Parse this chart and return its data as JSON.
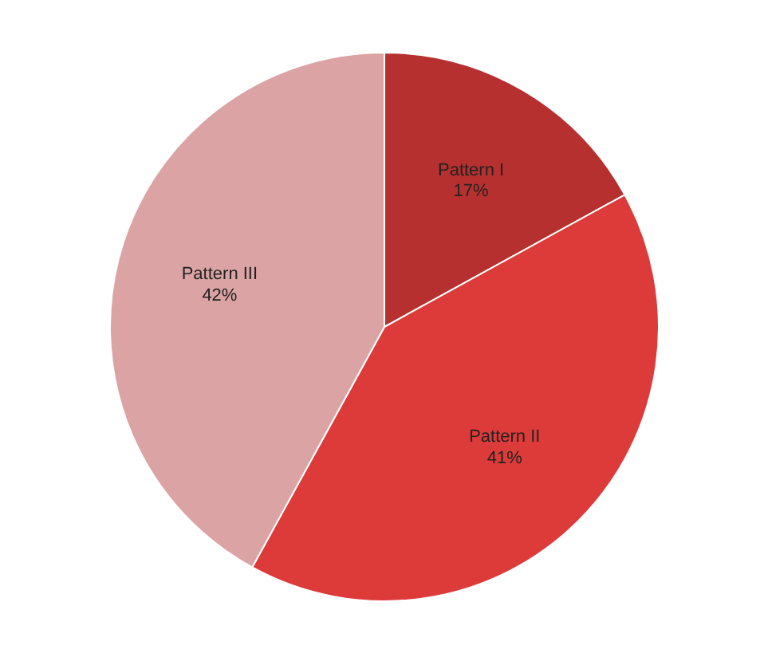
{
  "chart_data": {
    "type": "pie",
    "categories": [
      "Pattern I",
      "Pattern II",
      "Pattern III"
    ],
    "values": [
      17,
      41,
      42
    ],
    "colors": [
      "#b5302f",
      "#dc3b3a",
      "#dba3a3"
    ],
    "value_labels": [
      "17%",
      "41%",
      "42%"
    ]
  }
}
